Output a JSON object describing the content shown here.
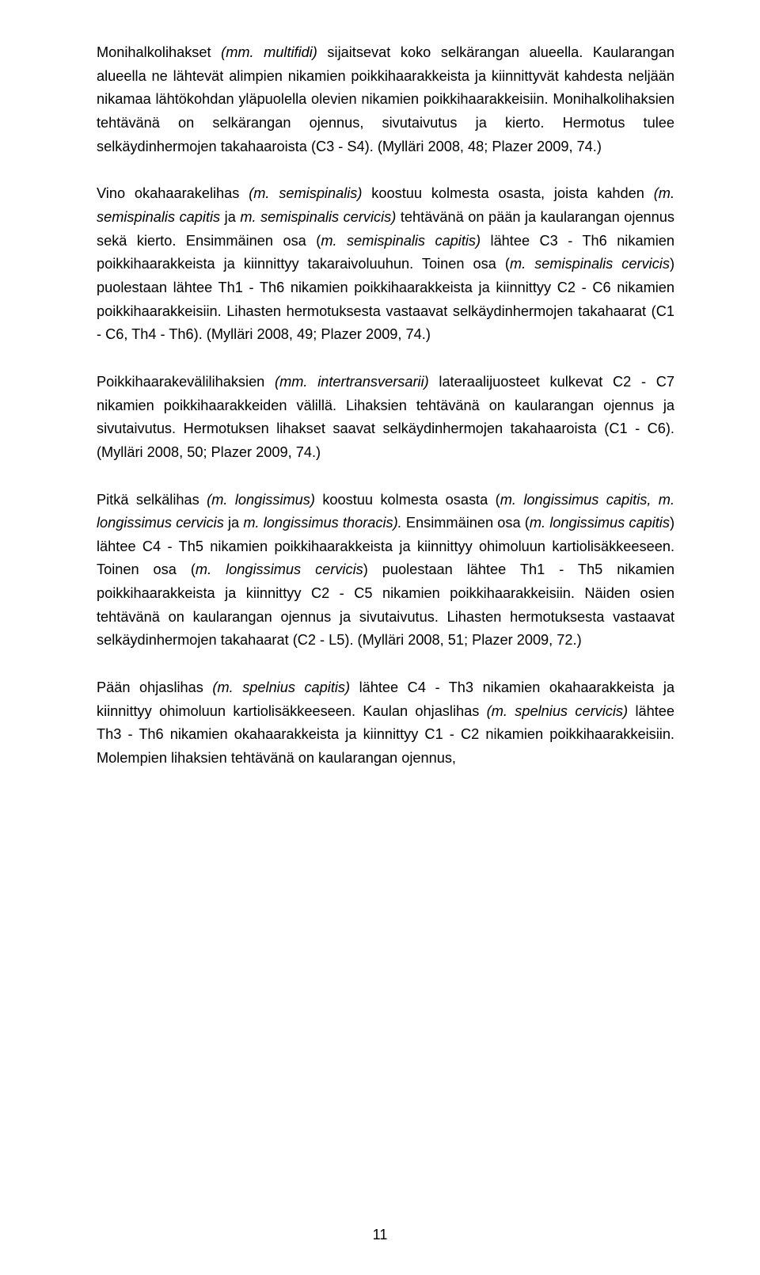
{
  "page_number": "11",
  "paragraphs": {
    "p1a": "Monihalkolihakset ",
    "p1b": "(mm. multifidi)",
    "p1c": " sijaitsevat koko selkärangan alueella. Kaularangan alueella ne lähtevät alimpien nikamien poikkihaarakkeista ja kiinnittyvät kahdesta neljään nikamaa lähtökohdan yläpuolella olevien nikamien poikkihaarakkeisiin. Monihalkolihaksien tehtävänä on selkärangan ojennus, sivutaivutus ja kierto. Hermotus tulee selkäydinhermojen takahaaroista (C3 - S4). (Mylläri 2008, 48; Plazer 2009, 74.)",
    "p2a": "Vino okahaarakelihas ",
    "p2b": "(m. semispinalis)",
    "p2c": " koostuu kolmesta osasta, joista kahden ",
    "p2d": "(m. semispinalis capitis",
    "p2e": " ja ",
    "p2f": "m. semispinalis cervicis)",
    "p2g": " tehtävänä on pään ja kaularangan ojennus sekä kierto. Ensimmäinen osa (",
    "p2h": "m. semispinalis capitis)",
    "p2i": " lähtee C3 - Th6 nikamien poikkihaarakkeista ja kiinnittyy takaraivoluuhun. Toinen osa (",
    "p2j": "m. semispinalis cervicis",
    "p2k": ") puolestaan lähtee Th1 - Th6 nikamien poikkihaarakkeista ja kiinnittyy C2 - C6 nikamien poikkihaarakkeisiin. Lihasten hermotuksesta vastaavat selkäydinhermojen takahaarat (C1 - C6, Th4 - Th6). (Mylläri 2008, 49; Plazer 2009, 74.)",
    "p3a": "Poikkihaarakevälilihaksien ",
    "p3b": "(mm. intertransversarii)",
    "p3c": " lateraalijuosteet kulkevat C2 - C7 nikamien poikkihaarakkeiden välillä. Lihaksien tehtävänä on kaularangan ojennus ja sivutaivutus. Hermotuksen lihakset saavat selkäydinhermojen takahaaroista (C1 - C6). (Mylläri 2008, 50; Plazer 2009, 74.)",
    "p4a": "Pitkä selkälihas ",
    "p4b": "(m. longissimus)",
    "p4c": " koostuu kolmesta osasta (",
    "p4d": "m. longissimus capitis, m. longissimus cervicis",
    "p4e": " ja ",
    "p4f": "m. longissimus thoracis).",
    "p4g": " Ensimmäinen osa (",
    "p4h": "m. longissimus capitis",
    "p4i": ") lähtee C4 - Th5 nikamien poikkihaarakkeista ja kiinnittyy ohimoluun kartiolisäkkeeseen. Toinen osa (",
    "p4j": "m. longissimus cervicis",
    "p4k": ") puolestaan lähtee Th1 - Th5 nikamien poikkihaarakkeista ja kiinnittyy C2 - C5 nikamien poikkihaarakkeisiin. Näiden osien tehtävänä on kaularangan ojennus ja sivutaivutus. Lihasten hermotuksesta vastaavat selkäydinhermojen takahaarat (C2 - L5). (Mylläri 2008, 51; Plazer 2009, 72.)",
    "p5a": "Pään ohjaslihas ",
    "p5b": "(m. spelnius capitis)",
    "p5c": " lähtee C4 - Th3 nikamien okahaarakkeista ja kiinnittyy ohimoluun kartiolisäkkeeseen. Kaulan ohjaslihas ",
    "p5d": "(m. spelnius cervicis)",
    "p5e": " lähtee Th3 - Th6 nikamien okahaarakkeista ja kiinnittyy C1 - C2 nikamien poikkihaarakkeisiin. Molempien lihaksien tehtävänä on kaularangan ojennus,"
  }
}
